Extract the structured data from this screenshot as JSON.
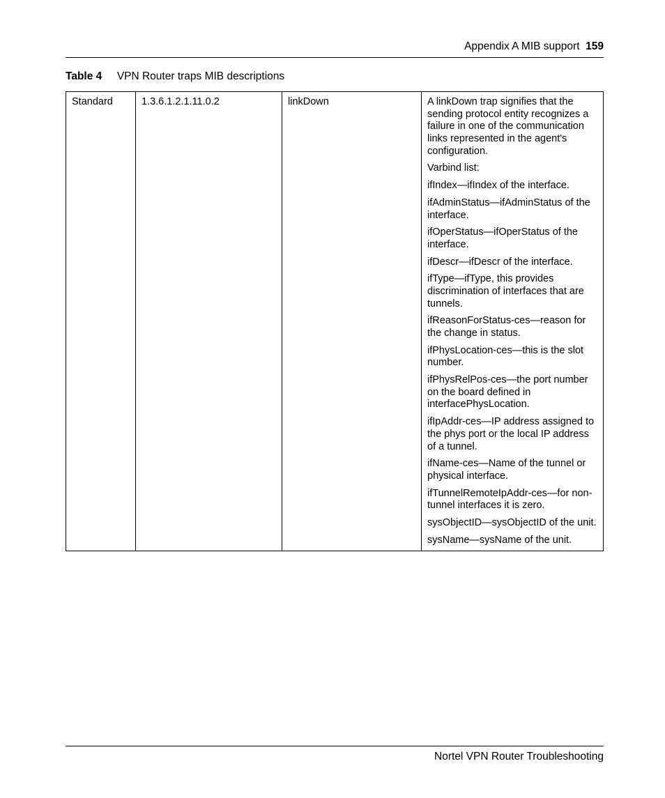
{
  "header": {
    "section": "Appendix A  MIB support",
    "page_number": "159"
  },
  "caption": {
    "label": "Table 4",
    "title": "VPN Router traps MIB descriptions"
  },
  "table": {
    "row": {
      "category": "Standard",
      "oid": "1.3.6.1.2.1.11.0.2",
      "name": "linkDown",
      "desc": {
        "p0": "A linkDown trap signifies that the sending protocol entity recognizes a failure in one of the communication links represented in the agent's configuration.",
        "p1": "Varbind list:",
        "p2": "ifIndex—ifIndex of the interface.",
        "p3": "ifAdminStatus—ifAdminStatus of the interface.",
        "p4": "ifOperStatus—ifOperStatus of the interface.",
        "p5": "ifDescr—ifDescr of the interface.",
        "p6": "ifType—ifType, this provides discrimination of interfaces that are tunnels.",
        "p7": "ifReasonForStatus-ces—reason for the change in status.",
        "p8": "ifPhysLocation-ces—this is the slot number.",
        "p9": "ifPhysRelPos-ces—the port number on the board defined in interfacePhysLocation.",
        "p10": "ifIpAddr-ces—IP address assigned to the phys port or the local IP address of a tunnel.",
        "p11": "ifName-ces—Name of the tunnel or physical interface.",
        "p12": "ifTunnelRemoteIpAddr-ces—for non-tunnel interfaces it is zero.",
        "p13": "sysObjectID—sysObjectID of the unit.",
        "p14": "sysName—sysName of the unit."
      }
    }
  },
  "footer": {
    "text": "Nortel VPN Router Troubleshooting"
  }
}
